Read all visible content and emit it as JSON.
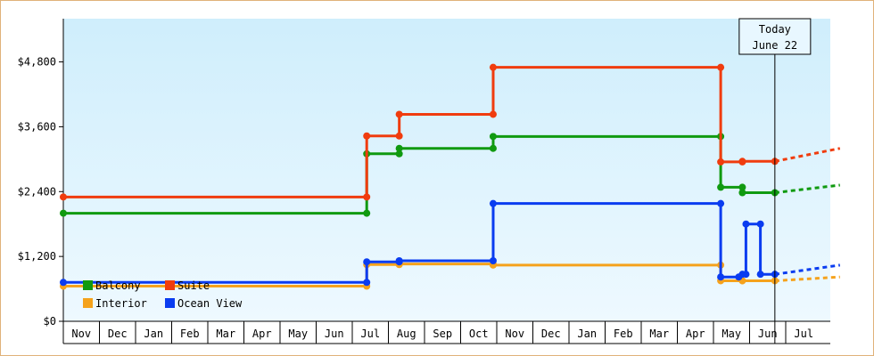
{
  "chart_data": {
    "type": "line",
    "title": "",
    "xlabel": "",
    "ylabel": "",
    "ylim": [
      0,
      5600
    ],
    "yticks": [
      0,
      1200,
      2400,
      3600,
      4800
    ],
    "ytick_labels": [
      "$0",
      "$1,200",
      "$2,400",
      "$3,600",
      "$4,800"
    ],
    "x_range": [
      0,
      21.5
    ],
    "x_months": [
      "Nov",
      "Dec",
      "Jan",
      "Feb",
      "Mar",
      "Apr",
      "May",
      "Jun",
      "Jul",
      "Aug",
      "Sep",
      "Oct",
      "Nov",
      "Dec",
      "Jan",
      "Feb",
      "Mar",
      "Apr",
      "May",
      "Jun",
      "Jul"
    ],
    "grid": false,
    "legend_position": "bottom-left",
    "annotation": {
      "line1": "Today",
      "line2": "June 22",
      "x": 19.7
    },
    "colors": {
      "background_top": "#cfeefc",
      "background_bottom": "#eef9ff"
    },
    "series": [
      {
        "name": "Balcony",
        "color": "#109a10",
        "points": [
          [
            0,
            2000
          ],
          [
            8.4,
            2000
          ],
          [
            8.4,
            3100
          ],
          [
            9.3,
            3100
          ],
          [
            9.3,
            3200
          ],
          [
            11.9,
            3200
          ],
          [
            11.9,
            3420
          ],
          [
            18.2,
            3420
          ],
          [
            18.2,
            2480
          ],
          [
            18.8,
            2480
          ],
          [
            18.8,
            2380
          ],
          [
            19.7,
            2380
          ]
        ],
        "projection": [
          [
            19.7,
            2380
          ],
          [
            21.5,
            2520
          ]
        ]
      },
      {
        "name": "Suite",
        "color": "#f03c0e",
        "points": [
          [
            0,
            2300
          ],
          [
            8.4,
            2300
          ],
          [
            8.4,
            3430
          ],
          [
            9.3,
            3430
          ],
          [
            9.3,
            3830
          ],
          [
            11.9,
            3830
          ],
          [
            11.9,
            4700
          ],
          [
            18.2,
            4700
          ],
          [
            18.2,
            2950
          ],
          [
            18.8,
            2950
          ],
          [
            18.8,
            2960
          ],
          [
            19.7,
            2960
          ]
        ],
        "projection": [
          [
            19.7,
            2960
          ],
          [
            21.5,
            3200
          ]
        ]
      },
      {
        "name": "Interior",
        "color": "#f5a21c",
        "points": [
          [
            0,
            650
          ],
          [
            8.4,
            650
          ],
          [
            8.4,
            1050
          ],
          [
            9.3,
            1050
          ],
          [
            9.3,
            1060
          ],
          [
            11.9,
            1060
          ],
          [
            11.9,
            1040
          ],
          [
            18.2,
            1040
          ],
          [
            18.2,
            750
          ],
          [
            18.8,
            750
          ],
          [
            18.8,
            750
          ],
          [
            19.7,
            750
          ]
        ],
        "projection": [
          [
            19.7,
            750
          ],
          [
            21.5,
            820
          ]
        ]
      },
      {
        "name": "Ocean View",
        "color": "#0a3cf0",
        "points": [
          [
            0,
            720
          ],
          [
            8.4,
            720
          ],
          [
            8.4,
            1100
          ],
          [
            9.3,
            1100
          ],
          [
            9.3,
            1120
          ],
          [
            11.9,
            1120
          ],
          [
            11.9,
            2180
          ],
          [
            18.2,
            2180
          ],
          [
            18.2,
            820
          ],
          [
            18.7,
            820
          ],
          [
            18.8,
            870
          ],
          [
            18.9,
            870
          ],
          [
            18.9,
            1800
          ],
          [
            19.3,
            1800
          ],
          [
            19.3,
            870
          ],
          [
            19.7,
            870
          ]
        ],
        "projection": [
          [
            19.7,
            870
          ],
          [
            21.5,
            1040
          ]
        ]
      }
    ]
  }
}
